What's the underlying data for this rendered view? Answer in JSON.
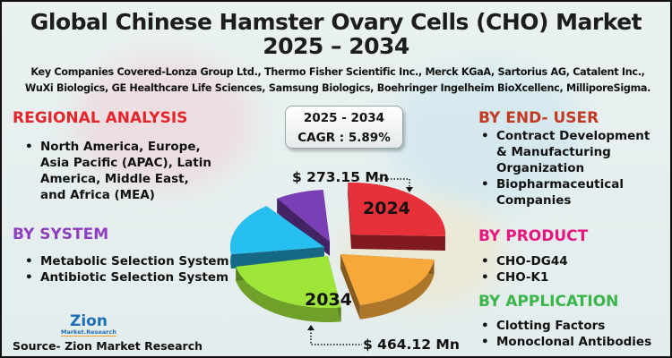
{
  "title": {
    "line1": "Global Chinese Hamster Ovary Cells (CHO) Market",
    "line2": "2025 – 2034"
  },
  "companies": "Key Companies Covered-Lonza Group Ltd., Thermo Fisher Scientific Inc., Merck KGaA, Sartorius AG, Catalent Inc., WuXi Biologics, GE Healthcare Life Sciences, Samsung Biologics, Boehringer Ingelheim BioXcellenc, MilliporeSigma.",
  "regional": {
    "heading": "REGIONAL ANALYSIS",
    "items": [
      "North America, Europe, Asia Pacific (APAC), Latin America, Middle East, and Africa (MEA)"
    ],
    "color": "#e3262b"
  },
  "system": {
    "heading": "BY SYSTEM",
    "items": [
      "Metabolic Selection System",
      "Antibiotic Selection System"
    ],
    "color": "#8e3fbf"
  },
  "end_user": {
    "heading": "BY END- USER",
    "items": [
      "Contract Development & Manufacturing Organization",
      "Biopharmaceutical Companies"
    ],
    "color": "#c23a22"
  },
  "product": {
    "heading": "BY PRODUCT",
    "items": [
      "CHO-DG44",
      "CHO-K1"
    ],
    "color": "#e6157f"
  },
  "application": {
    "heading": "BY APPLICATION",
    "items": [
      "Clotting Factors",
      "Monoclonal Antibodies"
    ],
    "color": "#3bb54a"
  },
  "cagr": {
    "period": "2025 - 2034",
    "label": "CAGR : 5.89%"
  },
  "pie": {
    "label_2024": "2024",
    "label_2034": "2034",
    "value_2024": "$ 273.15 Mn",
    "value_2034": "$ 464.12 Mn",
    "slice_colors": [
      "#e8303a",
      "#f7a83a",
      "#9ee53a",
      "#27bff0",
      "#7a3fb5"
    ]
  },
  "logo": {
    "name": "Zion",
    "sub": "Market.Research"
  },
  "source": "Source- Zion Market Research"
}
